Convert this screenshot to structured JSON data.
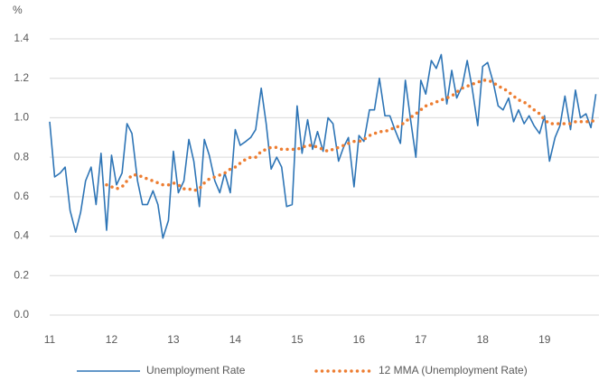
{
  "chart_data": {
    "type": "line",
    "y_label": "%",
    "x": [
      11,
      11.08,
      11.17,
      11.25,
      11.33,
      11.42,
      11.5,
      11.58,
      11.67,
      11.75,
      11.83,
      11.92,
      12,
      12.08,
      12.17,
      12.25,
      12.33,
      12.42,
      12.5,
      12.58,
      12.67,
      12.75,
      12.83,
      12.92,
      13,
      13.08,
      13.17,
      13.25,
      13.33,
      13.42,
      13.5,
      13.58,
      13.67,
      13.75,
      13.83,
      13.92,
      14,
      14.08,
      14.17,
      14.25,
      14.33,
      14.42,
      14.5,
      14.58,
      14.67,
      14.75,
      14.83,
      14.92,
      15,
      15.08,
      15.17,
      15.25,
      15.33,
      15.42,
      15.5,
      15.58,
      15.67,
      15.75,
      15.83,
      15.92,
      16,
      16.08,
      16.17,
      16.25,
      16.33,
      16.42,
      16.5,
      16.58,
      16.67,
      16.75,
      16.83,
      16.92,
      17,
      17.08,
      17.17,
      17.25,
      17.33,
      17.42,
      17.5,
      17.58,
      17.67,
      17.75,
      17.83,
      17.92,
      18,
      18.08,
      18.17,
      18.25,
      18.33,
      18.42,
      18.5,
      18.58,
      18.67,
      18.75,
      18.83,
      18.92,
      19,
      19.08,
      19.17,
      19.25,
      19.33,
      19.42,
      19.5,
      19.58,
      19.67,
      19.75,
      19.83
    ],
    "series": [
      {
        "name": "Unemployment Rate",
        "color": "#2e75b6",
        "style": "solid",
        "values": [
          0.98,
          0.7,
          0.72,
          0.75,
          0.53,
          0.42,
          0.52,
          0.68,
          0.75,
          0.56,
          0.82,
          0.43,
          0.81,
          0.66,
          0.72,
          0.97,
          0.92,
          0.68,
          0.56,
          0.56,
          0.63,
          0.56,
          0.39,
          0.48,
          0.83,
          0.62,
          0.68,
          0.89,
          0.78,
          0.55,
          0.89,
          0.81,
          0.68,
          0.62,
          0.72,
          0.62,
          0.94,
          0.86,
          0.88,
          0.9,
          0.94,
          1.15,
          0.97,
          0.74,
          0.8,
          0.75,
          0.55,
          0.56,
          1.06,
          0.82,
          0.99,
          0.84,
          0.93,
          0.83,
          1.0,
          0.97,
          0.78,
          0.85,
          0.9,
          0.65,
          0.91,
          0.88,
          1.04,
          1.04,
          1.2,
          1.01,
          1.01,
          0.94,
          0.87,
          1.19,
          1.0,
          0.8,
          1.19,
          1.12,
          1.29,
          1.25,
          1.32,
          1.07,
          1.24,
          1.1,
          1.16,
          1.29,
          1.15,
          0.96,
          1.26,
          1.28,
          1.18,
          1.06,
          1.04,
          1.1,
          0.98,
          1.04,
          0.97,
          1.01,
          0.96,
          0.92,
          1.01,
          0.78,
          0.9,
          0.96,
          1.11,
          0.94,
          1.14,
          1.0,
          1.02,
          0.95,
          1.12
        ]
      },
      {
        "name": "12 MMA (Unemployment Rate)",
        "color": "#ed7d31",
        "style": "dotted",
        "values": [
          null,
          null,
          null,
          null,
          null,
          null,
          null,
          null,
          null,
          null,
          null,
          0.66,
          0.65,
          0.64,
          0.65,
          0.68,
          0.71,
          0.71,
          0.7,
          0.69,
          0.68,
          0.67,
          0.66,
          0.66,
          0.67,
          0.66,
          0.64,
          0.64,
          0.63,
          0.64,
          0.67,
          0.69,
          0.7,
          0.71,
          0.72,
          0.74,
          0.75,
          0.77,
          0.79,
          0.8,
          0.8,
          0.83,
          0.84,
          0.85,
          0.85,
          0.84,
          0.84,
          0.84,
          0.84,
          0.85,
          0.86,
          0.86,
          0.85,
          0.84,
          0.83,
          0.84,
          0.85,
          0.86,
          0.87,
          0.88,
          0.88,
          0.89,
          0.91,
          0.92,
          0.93,
          0.93,
          0.94,
          0.95,
          0.96,
          0.98,
          1.0,
          1.02,
          1.04,
          1.06,
          1.07,
          1.08,
          1.09,
          1.1,
          1.11,
          1.13,
          1.15,
          1.16,
          1.17,
          1.18,
          1.19,
          1.19,
          1.18,
          1.16,
          1.15,
          1.13,
          1.11,
          1.09,
          1.08,
          1.06,
          1.04,
          1.02,
          0.99,
          0.97,
          0.97,
          0.97,
          0.97,
          0.97,
          0.98,
          0.98,
          0.98,
          0.98,
          0.99
        ]
      }
    ],
    "xlim": [
      11,
      19.88
    ],
    "xticks": [
      11,
      12,
      13,
      14,
      15,
      16,
      17,
      18,
      19
    ],
    "ylim": [
      0,
      1.4
    ],
    "yticks": [
      {
        "value": 0,
        "label": "0.0"
      },
      0.2,
      0.4,
      0.6,
      0.8,
      {
        "value": 1,
        "label": "1.0"
      },
      1.2,
      1.4
    ],
    "grid": true,
    "legend": "bottom"
  }
}
